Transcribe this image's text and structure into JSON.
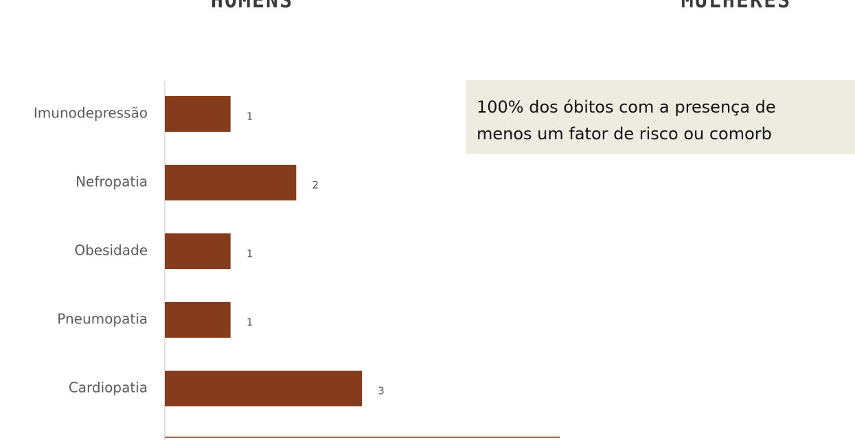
{
  "headers": [
    "HOMENS",
    "MULHERES"
  ],
  "chart_data": {
    "type": "bar",
    "orientation": "horizontal",
    "categories": [
      "Imunodepressão",
      "Nefropatia",
      "Obesidade",
      "Pneumopatia",
      "Cardiopatia"
    ],
    "values": [
      1,
      2,
      1,
      1,
      3
    ],
    "color": "#843c1c",
    "xlim": [
      0,
      6
    ],
    "annotation": [
      "100% dos óbitos com a presença de",
      "menos um fator de risco ou comorb"
    ]
  }
}
